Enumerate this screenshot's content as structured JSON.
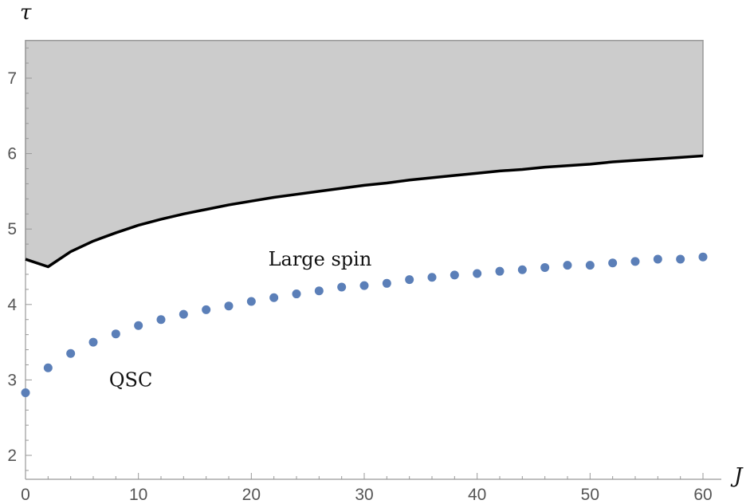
{
  "chart_data": {
    "type": "scatter",
    "title": "",
    "xlabel": "J",
    "ylabel": "τ",
    "xlim": [
      0,
      60
    ],
    "ylim": [
      1.75,
      7.5
    ],
    "xticks": [
      0,
      10,
      20,
      30,
      40,
      50,
      60
    ],
    "yticks": [
      2,
      3,
      4,
      5,
      6,
      7
    ],
    "grid": false,
    "legend": "none",
    "colors": {
      "points": "#5b7fb8",
      "boundary": "#000000",
      "region_fill": "#cccccc",
      "region_edge": "#999999",
      "axis": "#999999",
      "tick_text": "#555555"
    },
    "series": [
      {
        "type": "scatter",
        "x": [
          0,
          2,
          4,
          6,
          8,
          10,
          12,
          14,
          16,
          18,
          20,
          22,
          24,
          26,
          28,
          30,
          32,
          34,
          36,
          38,
          40,
          42,
          44,
          46,
          48,
          50,
          52,
          54,
          56,
          58,
          60
        ],
        "y": [
          2.83,
          3.16,
          3.35,
          3.5,
          3.61,
          3.72,
          3.8,
          3.87,
          3.93,
          3.98,
          4.04,
          4.09,
          4.14,
          4.18,
          4.23,
          4.25,
          4.28,
          4.33,
          4.36,
          4.39,
          4.41,
          4.44,
          4.46,
          4.49,
          4.52,
          4.52,
          4.55,
          4.57,
          4.6,
          4.6,
          4.63
        ]
      },
      {
        "type": "line",
        "x": [
          0,
          2,
          4,
          6,
          8,
          10,
          12,
          14,
          16,
          18,
          20,
          22,
          24,
          26,
          28,
          30,
          32,
          34,
          36,
          38,
          40,
          42,
          44,
          46,
          48,
          50,
          52,
          54,
          56,
          58,
          60
        ],
        "y": [
          4.6,
          4.5,
          4.7,
          4.84,
          4.95,
          5.05,
          5.13,
          5.2,
          5.26,
          5.32,
          5.37,
          5.42,
          5.46,
          5.5,
          5.54,
          5.58,
          5.61,
          5.65,
          5.68,
          5.71,
          5.74,
          5.77,
          5.79,
          5.82,
          5.84,
          5.86,
          5.89,
          5.91,
          5.93,
          5.95,
          5.97
        ]
      }
    ],
    "shaded_region": {
      "from_series": 1,
      "to_y": 7.5
    },
    "annotations": [
      {
        "text": "Large spin",
        "x": 21.5,
        "y": 4.6
      },
      {
        "text": "QSC",
        "x": 7.4,
        "y": 3.0
      }
    ]
  }
}
